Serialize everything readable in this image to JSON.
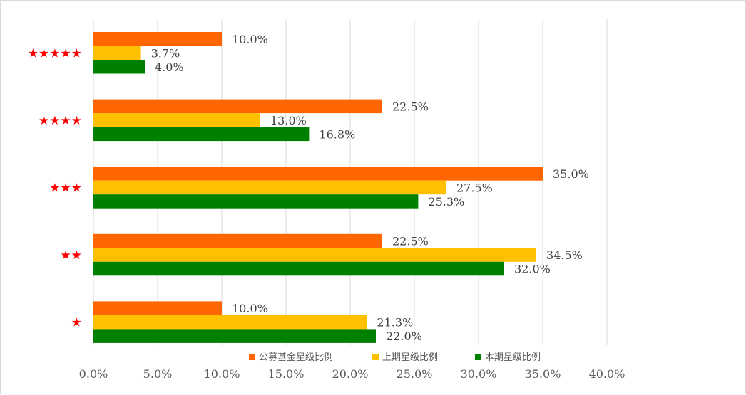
{
  "chart_data": {
    "type": "bar",
    "orientation": "horizontal",
    "categories": [
      "★★★★★",
      "★★★★",
      "★★★",
      "★★",
      "★"
    ],
    "series": [
      {
        "name": "公募基金星级比例",
        "color": "#ff6600",
        "values": [
          10.0,
          22.5,
          35.0,
          22.5,
          10.0
        ],
        "labels": [
          "10.0%",
          "22.5%",
          "35.0%",
          "22.5%",
          "10.0%"
        ]
      },
      {
        "name": "上期星级比例",
        "color": "#ffc000",
        "values": [
          3.7,
          13.0,
          27.5,
          34.5,
          21.3
        ],
        "labels": [
          "3.7%",
          "13.0%",
          "27.5%",
          "34.5%",
          "21.3%"
        ]
      },
      {
        "name": "本期星级比例",
        "color": "#008000",
        "values": [
          4.0,
          16.8,
          25.3,
          32.0,
          22.0
        ],
        "labels": [
          "4.0%",
          "16.8%",
          "25.3%",
          "32.0%",
          "22.0%"
        ]
      }
    ],
    "x_ticks": [
      "0.0%",
      "5.0%",
      "10.0%",
      "15.0%",
      "20.0%",
      "25.0%",
      "30.0%",
      "35.0%",
      "40.0%"
    ],
    "xlim": [
      0,
      40
    ],
    "grid": "vertical",
    "legend_position": "bottom",
    "category_label_color": "#ff0000"
  }
}
